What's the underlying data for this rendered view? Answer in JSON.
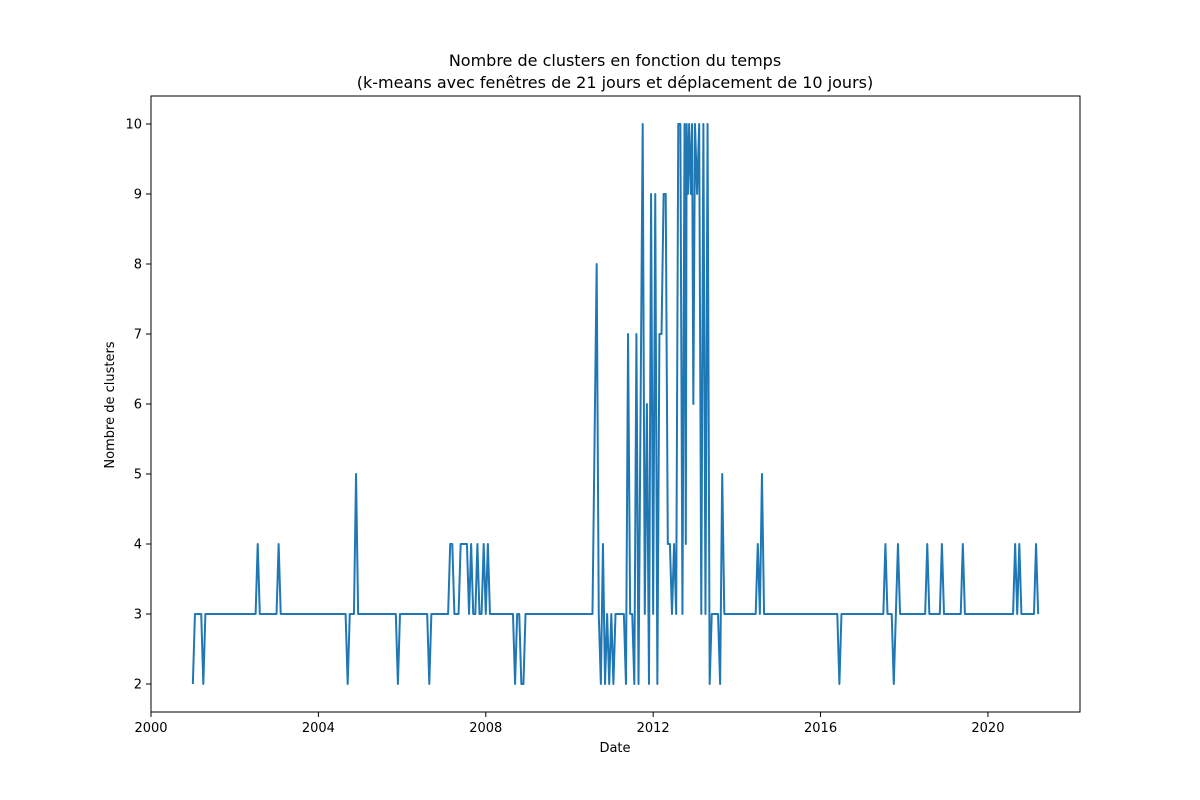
{
  "chart_data": {
    "type": "line",
    "title_line1": "Nombre de clusters en fonction du temps",
    "title_line2": "(k-means avec fenêtres de 21 jours et déplacement de 10 jours)",
    "xlabel": "Date",
    "ylabel": "Nombre de clusters",
    "xlim": [
      2000,
      2022.2
    ],
    "ylim": [
      1.6,
      10.4
    ],
    "x_ticks": [
      2000,
      2004,
      2008,
      2012,
      2016,
      2020
    ],
    "x_tick_labels": [
      "2000",
      "2004",
      "2008",
      "2012",
      "2016",
      "2020"
    ],
    "y_ticks": [
      2,
      3,
      4,
      5,
      6,
      7,
      8,
      9,
      10
    ],
    "y_tick_labels": [
      "2",
      "3",
      "4",
      "5",
      "6",
      "7",
      "8",
      "9",
      "10"
    ],
    "grid": false,
    "line_color": "#1f77b4",
    "series": [
      {
        "points": [
          [
            2001.0,
            2
          ],
          [
            2001.05,
            3
          ],
          [
            2001.2,
            3
          ],
          [
            2001.25,
            2
          ],
          [
            2001.3,
            3
          ],
          [
            2002.5,
            3
          ],
          [
            2002.55,
            4
          ],
          [
            2002.6,
            3
          ],
          [
            2003.0,
            3
          ],
          [
            2003.05,
            4
          ],
          [
            2003.1,
            3
          ],
          [
            2004.65,
            3
          ],
          [
            2004.7,
            2
          ],
          [
            2004.75,
            3
          ],
          [
            2004.85,
            3
          ],
          [
            2004.9,
            5
          ],
          [
            2004.95,
            3
          ],
          [
            2005.85,
            3
          ],
          [
            2005.9,
            2
          ],
          [
            2005.95,
            3
          ],
          [
            2006.6,
            3
          ],
          [
            2006.65,
            2
          ],
          [
            2006.7,
            3
          ],
          [
            2007.1,
            3
          ],
          [
            2007.15,
            4
          ],
          [
            2007.2,
            4
          ],
          [
            2007.25,
            3
          ],
          [
            2007.35,
            3
          ],
          [
            2007.4,
            4
          ],
          [
            2007.55,
            4
          ],
          [
            2007.6,
            3
          ],
          [
            2007.65,
            4
          ],
          [
            2007.7,
            3
          ],
          [
            2007.75,
            3
          ],
          [
            2007.8,
            4
          ],
          [
            2007.85,
            3
          ],
          [
            2007.9,
            3
          ],
          [
            2007.95,
            4
          ],
          [
            2008.0,
            3
          ],
          [
            2008.05,
            4
          ],
          [
            2008.1,
            3
          ],
          [
            2008.65,
            3
          ],
          [
            2008.7,
            2
          ],
          [
            2008.75,
            3
          ],
          [
            2008.8,
            3
          ],
          [
            2008.85,
            2
          ],
          [
            2008.9,
            2
          ],
          [
            2008.95,
            3
          ],
          [
            2010.55,
            3
          ],
          [
            2010.65,
            8
          ],
          [
            2010.7,
            3
          ],
          [
            2010.75,
            2
          ],
          [
            2010.8,
            4
          ],
          [
            2010.85,
            2
          ],
          [
            2010.9,
            3
          ],
          [
            2010.95,
            2
          ],
          [
            2011.0,
            3
          ],
          [
            2011.05,
            2
          ],
          [
            2011.1,
            3
          ],
          [
            2011.3,
            3
          ],
          [
            2011.35,
            2
          ],
          [
            2011.4,
            7
          ],
          [
            2011.45,
            3
          ],
          [
            2011.5,
            3
          ],
          [
            2011.55,
            2
          ],
          [
            2011.6,
            7
          ],
          [
            2011.65,
            2
          ],
          [
            2011.75,
            10
          ],
          [
            2011.8,
            3
          ],
          [
            2011.85,
            6
          ],
          [
            2011.9,
            2
          ],
          [
            2011.95,
            9
          ],
          [
            2012.0,
            3
          ],
          [
            2012.05,
            9
          ],
          [
            2012.1,
            2
          ],
          [
            2012.15,
            7
          ],
          [
            2012.2,
            7
          ],
          [
            2012.25,
            9
          ],
          [
            2012.3,
            9
          ],
          [
            2012.35,
            4
          ],
          [
            2012.4,
            4
          ],
          [
            2012.45,
            3
          ],
          [
            2012.5,
            4
          ],
          [
            2012.55,
            3
          ],
          [
            2012.6,
            10
          ],
          [
            2012.65,
            10
          ],
          [
            2012.7,
            3
          ],
          [
            2012.75,
            10
          ],
          [
            2012.78,
            4
          ],
          [
            2012.8,
            10
          ],
          [
            2012.83,
            9
          ],
          [
            2012.86,
            10
          ],
          [
            2012.9,
            9
          ],
          [
            2012.93,
            10
          ],
          [
            2012.96,
            6
          ],
          [
            2013.0,
            10
          ],
          [
            2013.05,
            9
          ],
          [
            2013.1,
            10
          ],
          [
            2013.15,
            3
          ],
          [
            2013.2,
            10
          ],
          [
            2013.25,
            3
          ],
          [
            2013.3,
            10
          ],
          [
            2013.35,
            2
          ],
          [
            2013.4,
            3
          ],
          [
            2013.55,
            3
          ],
          [
            2013.6,
            2
          ],
          [
            2013.65,
            5
          ],
          [
            2013.7,
            3
          ],
          [
            2014.45,
            3
          ],
          [
            2014.5,
            4
          ],
          [
            2014.55,
            3
          ],
          [
            2014.6,
            5
          ],
          [
            2014.65,
            3
          ],
          [
            2016.4,
            3
          ],
          [
            2016.45,
            2
          ],
          [
            2016.5,
            3
          ],
          [
            2017.5,
            3
          ],
          [
            2017.55,
            4
          ],
          [
            2017.6,
            3
          ],
          [
            2017.7,
            3
          ],
          [
            2017.75,
            2
          ],
          [
            2017.8,
            3
          ],
          [
            2017.85,
            4
          ],
          [
            2017.9,
            3
          ],
          [
            2018.5,
            3
          ],
          [
            2018.55,
            4
          ],
          [
            2018.6,
            3
          ],
          [
            2018.85,
            3
          ],
          [
            2018.9,
            4
          ],
          [
            2018.95,
            3
          ],
          [
            2019.35,
            3
          ],
          [
            2019.4,
            4
          ],
          [
            2019.45,
            3
          ],
          [
            2020.6,
            3
          ],
          [
            2020.65,
            4
          ],
          [
            2020.7,
            3
          ],
          [
            2020.75,
            4
          ],
          [
            2020.8,
            3
          ],
          [
            2021.1,
            3
          ],
          [
            2021.15,
            4
          ],
          [
            2021.2,
            3
          ]
        ]
      }
    ]
  }
}
